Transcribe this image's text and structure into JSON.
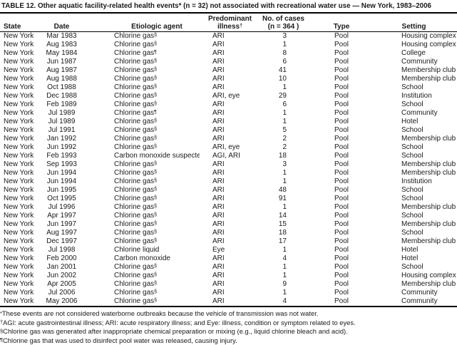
{
  "table": {
    "title": "TABLE 12. Other aquatic facility-related health events* (n = 32) not associated with recreational water use — New York, 1983–2006",
    "columns": {
      "state": "State",
      "date": "Date",
      "agent": "Etiologic agent",
      "illness_line1": "Predominant",
      "illness_line2": "illness",
      "illness_sup": "†",
      "cases_line1": "No. of cases",
      "cases_line2": "(n = 364 )",
      "type": "Type",
      "setting": "Setting"
    },
    "rows": [
      {
        "state": "New York",
        "date": "Mar 1983",
        "agent": "Chlorine gas",
        "agent_sup": "§",
        "illness": "ARI",
        "cases": "3",
        "type": "Pool",
        "setting": "Housing complex"
      },
      {
        "state": "New York",
        "date": "Aug 1983",
        "agent": "Chlorine gas",
        "agent_sup": "§",
        "illness": "ARI",
        "cases": "1",
        "type": "Pool",
        "setting": "Housing complex"
      },
      {
        "state": "New York",
        "date": "May 1984",
        "agent": "Chlorine gas",
        "agent_sup": "¶",
        "illness": "ARI",
        "cases": "8",
        "type": "Pool",
        "setting": "College"
      },
      {
        "state": "New York",
        "date": "Jun 1987",
        "agent": "Chlorine gas",
        "agent_sup": "§",
        "illness": "ARI",
        "cases": "6",
        "type": "Pool",
        "setting": "Community"
      },
      {
        "state": "New York",
        "date": "Aug 1987",
        "agent": "Chlorine gas",
        "agent_sup": "§",
        "illness": "ARI",
        "cases": "41",
        "type": "Pool",
        "setting": "Membership club"
      },
      {
        "state": "New York",
        "date": "Aug 1988",
        "agent": "Chlorine gas",
        "agent_sup": "§",
        "illness": "ARI",
        "cases": "10",
        "type": "Pool",
        "setting": "Membership club"
      },
      {
        "state": "New York",
        "date": "Oct 1988",
        "agent": "Chlorine gas",
        "agent_sup": "§",
        "illness": "ARI",
        "cases": "1",
        "type": "Pool",
        "setting": "School"
      },
      {
        "state": "New York",
        "date": "Dec 1988",
        "agent": "Chlorine gas",
        "agent_sup": "§",
        "illness": "ARI, eye",
        "cases": "29",
        "type": "Pool",
        "setting": "Institution"
      },
      {
        "state": "New York",
        "date": "Feb 1989",
        "agent": "Chlorine gas",
        "agent_sup": "§",
        "illness": "ARI",
        "cases": "6",
        "type": "Pool",
        "setting": "School"
      },
      {
        "state": "New York",
        "date": "Jul 1989",
        "agent": "Chlorine gas",
        "agent_sup": "¶",
        "illness": "ARI",
        "cases": "1",
        "type": "Pool",
        "setting": "Community"
      },
      {
        "state": "New York",
        "date": "Jul 1989",
        "agent": "Chlorine gas",
        "agent_sup": "§",
        "illness": "ARI",
        "cases": "1",
        "type": "Pool",
        "setting": "Hotel"
      },
      {
        "state": "New York",
        "date": "Jul 1991",
        "agent": "Chlorine gas",
        "agent_sup": "§",
        "illness": "ARI",
        "cases": "5",
        "type": "Pool",
        "setting": "School"
      },
      {
        "state": "New York",
        "date": "Jan 1992",
        "agent": "Chlorine gas",
        "agent_sup": "§",
        "illness": "ARI",
        "cases": "2",
        "type": "Pool",
        "setting": "Membership club"
      },
      {
        "state": "New York",
        "date": "Jun 1992",
        "agent": "Chlorine gas",
        "agent_sup": "§",
        "illness": "ARI, eye",
        "cases": "2",
        "type": "Pool",
        "setting": "School"
      },
      {
        "state": "New York",
        "date": "Feb 1993",
        "agent": "Carbon monoxide suspected",
        "agent_sup": "",
        "illness": "AGI, ARI",
        "cases": "18",
        "type": "Pool",
        "setting": "School"
      },
      {
        "state": "New York",
        "date": "Sep 1993",
        "agent": "Chlorine gas",
        "agent_sup": "§",
        "illness": "ARI",
        "cases": "3",
        "type": "Pool",
        "setting": "Membership club"
      },
      {
        "state": "New York",
        "date": "Jun 1994",
        "agent": "Chlorine gas",
        "agent_sup": "§",
        "illness": "ARI",
        "cases": "1",
        "type": "Pool",
        "setting": "Membership club"
      },
      {
        "state": "New York",
        "date": "Jun 1994",
        "agent": "Chlorine gas",
        "agent_sup": "§",
        "illness": "ARI",
        "cases": "1",
        "type": "Pool",
        "setting": "Institution"
      },
      {
        "state": "New York",
        "date": "Jun 1995",
        "agent": "Chlorine gas",
        "agent_sup": "§",
        "illness": "ARI",
        "cases": "48",
        "type": "Pool",
        "setting": "School"
      },
      {
        "state": "New York",
        "date": "Oct 1995",
        "agent": "Chlorine gas",
        "agent_sup": "§",
        "illness": "ARI",
        "cases": "91",
        "type": "Pool",
        "setting": "School"
      },
      {
        "state": "New York",
        "date": "Jul 1996",
        "agent": "Chlorine gas",
        "agent_sup": "§",
        "illness": "ARI",
        "cases": "1",
        "type": "Pool",
        "setting": "Membership club"
      },
      {
        "state": "New York",
        "date": "Apr 1997",
        "agent": "Chlorine gas",
        "agent_sup": "§",
        "illness": "ARI",
        "cases": "14",
        "type": "Pool",
        "setting": "School"
      },
      {
        "state": "New York",
        "date": "Jun 1997",
        "agent": "Chlorine gas",
        "agent_sup": "§",
        "illness": "ARI",
        "cases": "15",
        "type": "Pool",
        "setting": "Membership club"
      },
      {
        "state": "New York",
        "date": "Aug 1997",
        "agent": "Chlorine gas",
        "agent_sup": "§",
        "illness": "ARI",
        "cases": "18",
        "type": "Pool",
        "setting": "School"
      },
      {
        "state": "New York",
        "date": "Dec 1997",
        "agent": "Chlorine gas",
        "agent_sup": "§",
        "illness": "ARI",
        "cases": "17",
        "type": "Pool",
        "setting": "Membership club"
      },
      {
        "state": "New York",
        "date": "Jul 1998",
        "agent": "Chlorine liquid",
        "agent_sup": "",
        "illness": "Eye",
        "cases": "1",
        "type": "Pool",
        "setting": "Hotel"
      },
      {
        "state": "New York",
        "date": "Feb 2000",
        "agent": "Carbon monoxide",
        "agent_sup": "",
        "illness": "ARI",
        "cases": "4",
        "type": "Pool",
        "setting": "Hotel"
      },
      {
        "state": "New York",
        "date": "Jan 2001",
        "agent": "Chlorine gas",
        "agent_sup": "§",
        "illness": "ARI",
        "cases": "1",
        "type": "Pool",
        "setting": "School"
      },
      {
        "state": "New York",
        "date": "Jun 2002",
        "agent": "Chlorine gas",
        "agent_sup": "§",
        "illness": "ARI",
        "cases": "1",
        "type": "Pool",
        "setting": "Housing complex"
      },
      {
        "state": "New York",
        "date": "Apr 2005",
        "agent": "Chlorine gas",
        "agent_sup": "§",
        "illness": "ARI",
        "cases": "9",
        "type": "Pool",
        "setting": "Membership club"
      },
      {
        "state": "New York",
        "date": "Jul 2006",
        "agent": "Chlorine gas",
        "agent_sup": "§",
        "illness": "ARI",
        "cases": "1",
        "type": "Pool",
        "setting": "Community"
      },
      {
        "state": "New York",
        "date": "May 2006",
        "agent": "Chlorine gas",
        "agent_sup": "§",
        "illness": "ARI",
        "cases": "4",
        "type": "Pool",
        "setting": "Community"
      }
    ],
    "footnotes": [
      {
        "marker": "*",
        "text": "These events are not considered waterborne outbreaks because the vehicle of transmission was not water."
      },
      {
        "marker": "†",
        "text": "AGI: acute gastrointestinal illness; ARI: acute respiratory illness; and Eye: illness, condition or symptom related to eyes."
      },
      {
        "marker": "§",
        "text": "Chlorine gas was generated after inappropriate chemical preparation or mixing (e.g., liquid chlorine bleach and acid)."
      },
      {
        "marker": "¶",
        "text": "Chlorine gas that was used to disinfect pool water was released, causing injury."
      }
    ]
  }
}
